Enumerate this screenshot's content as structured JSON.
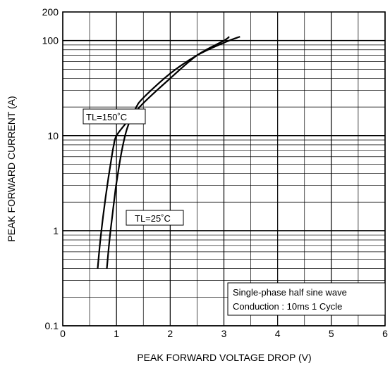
{
  "chart_data": {
    "type": "line",
    "title": "",
    "xlabel": "PEAK FORWARD VOLTAGE DROP (V)",
    "ylabel": "PEAK FORWARD CURRENT (A)",
    "xlim": [
      0,
      6
    ],
    "ylim": [
      0.1,
      200
    ],
    "y_scale": "log",
    "grid": true,
    "x_ticks": [
      "0",
      "1",
      "2",
      "3",
      "4",
      "5",
      "6"
    ],
    "y_ticks": [
      "0.1",
      "1",
      "10",
      "100",
      "200"
    ],
    "series": [
      {
        "name": "TL=150°C",
        "x": [
          0.65,
          0.7,
          0.75,
          0.8,
          0.85,
          0.9,
          0.95,
          1.0,
          1.2,
          1.5,
          2.0,
          2.5,
          3.0,
          3.1
        ],
        "y": [
          0.4,
          0.8,
          1.4,
          2.3,
          3.6,
          5.5,
          8.0,
          10.0,
          14.0,
          22.0,
          40.0,
          70.0,
          100.0,
          110.0
        ]
      },
      {
        "name": "TL=25°C",
        "x": [
          0.82,
          0.87,
          0.92,
          0.97,
          1.0,
          1.1,
          1.2,
          1.35,
          1.5,
          2.0,
          2.5,
          3.0,
          3.3
        ],
        "y": [
          0.4,
          0.8,
          1.4,
          2.4,
          3.2,
          7.0,
          12.0,
          19.0,
          25.0,
          45.0,
          70.0,
          95.0,
          110.0
        ]
      }
    ],
    "annotations": {
      "label_150": "TL=150˚C",
      "label_25": "TL=25˚C",
      "note_line1": "Single-phase half sine wave",
      "note_line2": "Conduction : 10ms 1 Cycle"
    }
  }
}
